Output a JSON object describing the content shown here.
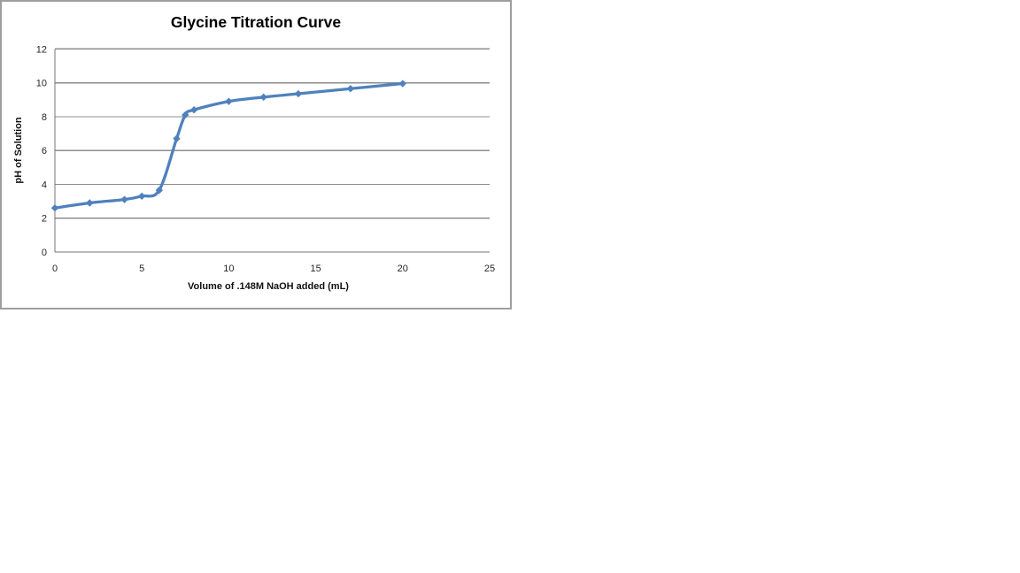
{
  "chart": {
    "colors": {
      "series": "#4f81bd",
      "grid": "#8c8c8c",
      "axis": "#767676",
      "border": "#9e9e9e",
      "background": "#ffffff",
      "text": "#262626"
    }
  },
  "chart_data": {
    "type": "line",
    "title": "Glycine Titration Curve",
    "xlabel": "Volume of .148M NaOH added (mL)",
    "ylabel": "pH of Solution",
    "series": [
      {
        "name": "pH of Solution",
        "x": [
          0,
          2,
          4,
          5,
          6,
          7,
          7.5,
          8,
          10,
          12,
          14,
          17,
          20
        ],
        "y": [
          2.6,
          2.9,
          3.1,
          3.3,
          3.65,
          6.7,
          8.1,
          8.4,
          8.9,
          9.15,
          9.35,
          9.65,
          9.95
        ]
      }
    ],
    "xlim": [
      0,
      25
    ],
    "ylim": [
      0,
      12
    ],
    "x_ticks": [
      "0",
      "5",
      "10",
      "15",
      "20",
      "25"
    ],
    "y_ticks": [
      "0",
      "2",
      "4",
      "6",
      "8",
      "10",
      "12"
    ],
    "grid": "horizontal",
    "legend": "none",
    "marker": "diamond",
    "line_smooth": true
  }
}
